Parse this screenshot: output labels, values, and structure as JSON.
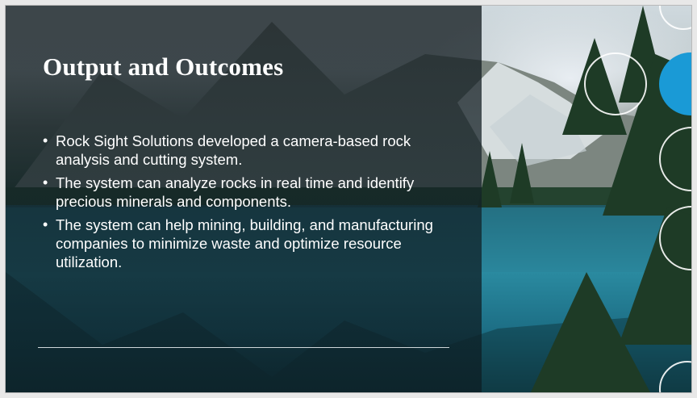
{
  "slide": {
    "title": "Output and Outcomes",
    "bullets": [
      "Rock Sight Solutions developed a camera-based rock analysis and cutting system.",
      "The system can analyze rocks in real time and identify precious minerals and components.",
      "The system can help mining, building, and manufacturing companies to minimize waste and optimize resource utilization."
    ],
    "bullet_glyph": "•",
    "accent_color": "#1a9ad6",
    "overlay_color": "#141c20"
  }
}
